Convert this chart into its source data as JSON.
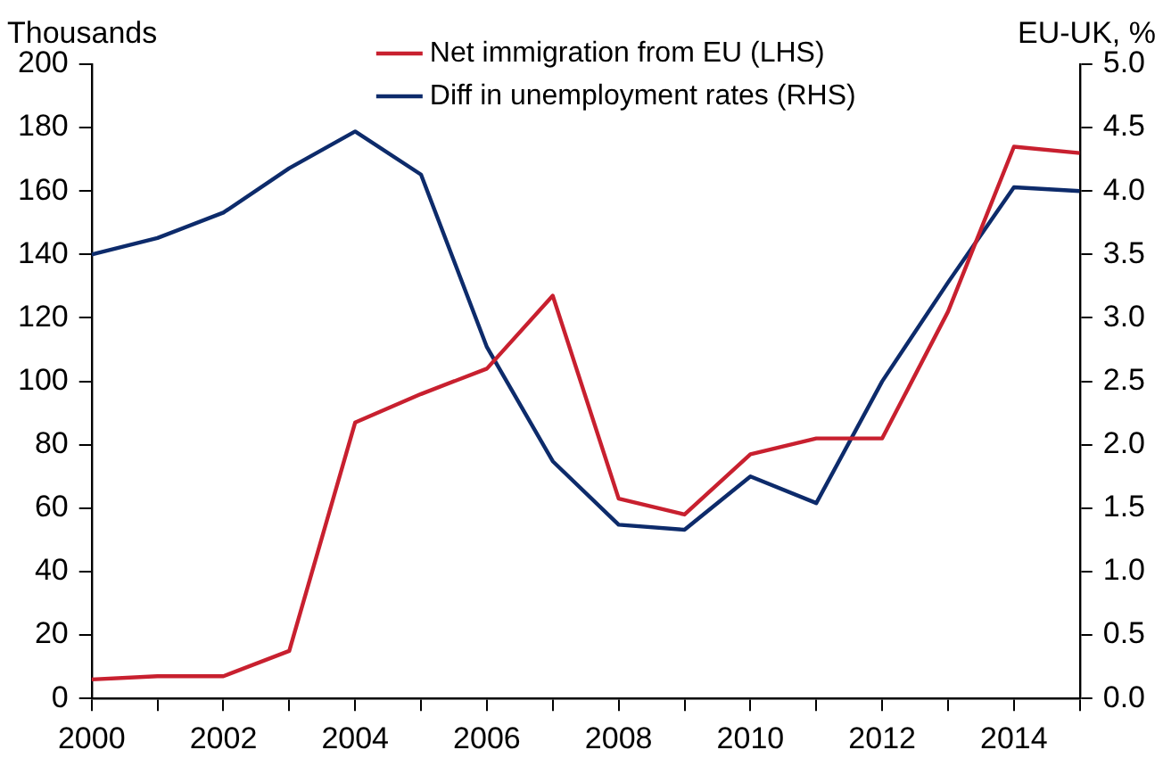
{
  "chart_data": {
    "type": "line",
    "ylabel": "Thousands",
    "y2label": "EU-UK, %",
    "x": [
      2000,
      2001,
      2002,
      2003,
      2004,
      2005,
      2006,
      2007,
      2008,
      2009,
      2010,
      2011,
      2012,
      2013,
      2014,
      2015
    ],
    "series": [
      {
        "name": "Net immigration from EU (LHS)",
        "color": "#c8202f",
        "values": [
          6,
          7,
          7,
          15,
          87,
          96,
          104,
          127,
          63,
          58,
          77,
          82,
          82,
          122,
          174,
          172
        ]
      },
      {
        "name": "Diff in unemployment rates (RHS)",
        "color": "#0d2b6b",
        "axis": "y2",
        "values": [
          3.5,
          3.63,
          3.83,
          4.18,
          4.47,
          4.13,
          2.77,
          1.87,
          1.37,
          1.33,
          1.75,
          1.54,
          2.5,
          3.28,
          4.03,
          4.0
        ]
      }
    ],
    "xlim": [
      2000,
      2015
    ],
    "xticks": [
      2000,
      {
        "value": 2001,
        "label": null
      },
      2002,
      {
        "value": 2003,
        "label": null
      },
      2004,
      {
        "value": 2005,
        "label": null
      },
      2006,
      {
        "value": 2007,
        "label": null
      },
      2008,
      {
        "value": 2009,
        "label": null
      },
      2010,
      {
        "value": 2011,
        "label": null
      },
      2012,
      {
        "value": 2013,
        "label": null
      },
      2014,
      {
        "value": 2015,
        "label": null
      }
    ],
    "ylim": [
      0,
      200
    ],
    "yticks": [
      0,
      20,
      40,
      60,
      80,
      100,
      120,
      140,
      160,
      180,
      200
    ],
    "y2lim": [
      0,
      5
    ],
    "y2ticks": [
      {
        "value": 0,
        "label": "0.0"
      },
      {
        "value": 0.5,
        "label": "0.5"
      },
      {
        "value": 1,
        "label": "1.0"
      },
      {
        "value": 1.5,
        "label": "1.5"
      },
      {
        "value": 2,
        "label": "2.0"
      },
      {
        "value": 2.5,
        "label": "2.5"
      },
      {
        "value": 3,
        "label": "3.0"
      },
      {
        "value": 3.5,
        "label": "3.5"
      },
      {
        "value": 4,
        "label": "4.0"
      },
      {
        "value": 4.5,
        "label": "4.5"
      },
      {
        "value": 5,
        "label": "5.0"
      }
    ],
    "legend": "top",
    "marker": "none",
    "line_style": "solid"
  }
}
